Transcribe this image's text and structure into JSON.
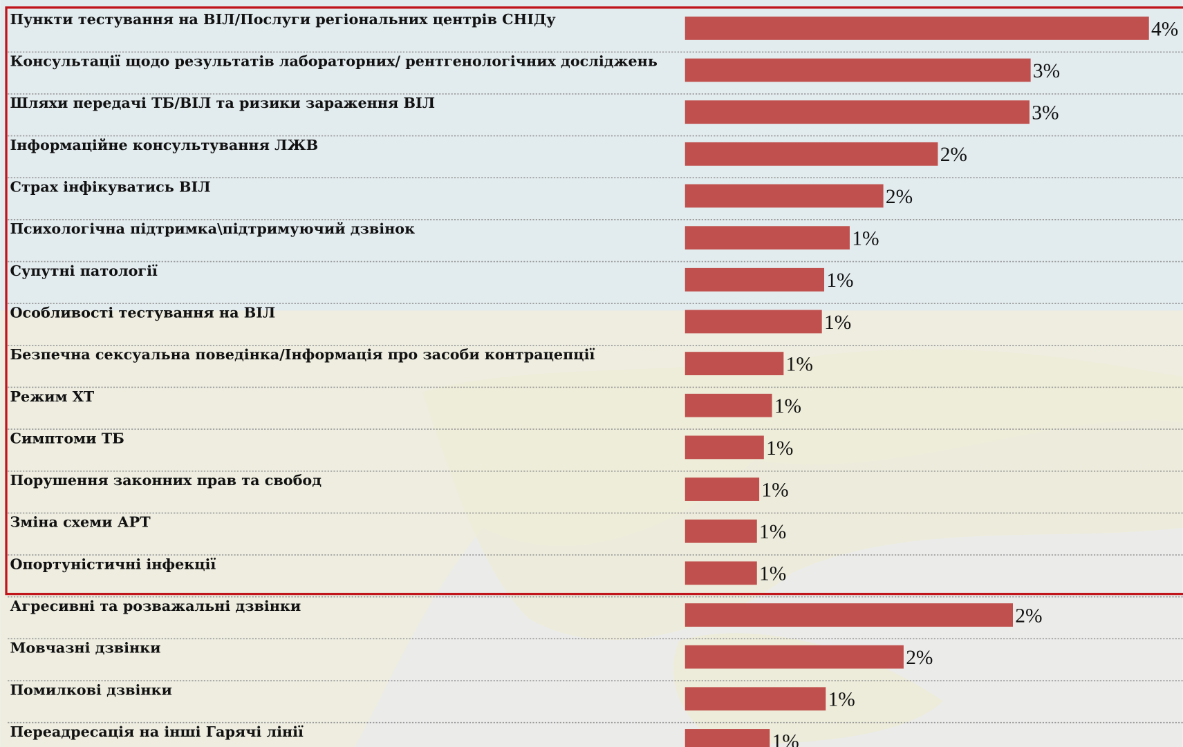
{
  "chart_data": [
    {
      "type": "hbar",
      "color": "#c0504d",
      "xlim": [
        0,
        4.5
      ],
      "categories": [
        "Пункти тестування на ВІЛ/Послуги регіональних центрів СНІДу",
        "Консультації щодо результатів лабораторних/  рентгенологічних досліджень",
        "Шляхи передачі ТБ/ВІЛ та ризики зараження ВІЛ",
        "Інформаційне консультування ЛЖВ",
        "Страх інфікуватись ВІЛ",
        "Психологічна підтримка\\підтримуючий дзвінок",
        "Супутні патології",
        "Особливості тестування на ВІЛ",
        "Безпечна сексуальна поведінка/Інформація про засоби контрацепції",
        "Режим ХТ",
        "Симптоми ТБ",
        "Порушення законних прав та свобод",
        "Зміна схеми АРТ",
        "Опортуністичні інфекції"
      ],
      "values": [
        4.0,
        2.98,
        2.97,
        2.18,
        1.71,
        1.42,
        1.2,
        1.18,
        0.85,
        0.75,
        0.68,
        0.64,
        0.62,
        0.62
      ],
      "value_labels": [
        "4%",
        "3%",
        "3%",
        "2%",
        "2%",
        "1%",
        "1%",
        "1%",
        "1%",
        "1%",
        "1%",
        "1%",
        "1%",
        "1%"
      ]
    },
    {
      "type": "hbar",
      "color": "#c0504d",
      "xlim": [
        0,
        3.82
      ],
      "categories": [
        "Агресивні та розважальні дзвінки",
        "Мовчазні дзвінки",
        "Помилкові дзвінки",
        "Переадресація на інші Гарячі лінії"
      ],
      "values": [
        2.4,
        1.6,
        1.03,
        0.62
      ],
      "value_labels": [
        "2%",
        "2%",
        "1%",
        "1%"
      ]
    }
  ]
}
